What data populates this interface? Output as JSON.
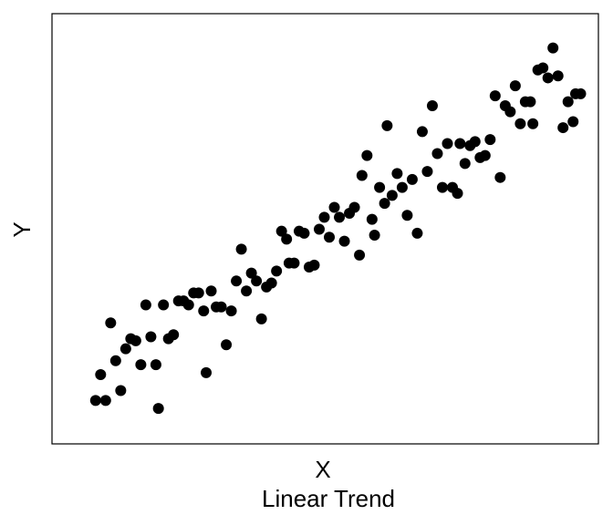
{
  "chart_data": {
    "type": "scatter",
    "xlabel": "X",
    "ylabel": "Y",
    "subtitle": "Linear Trend",
    "grid": false,
    "legend": "none",
    "point_color": "#000000",
    "xlim": [
      0,
      100
    ],
    "ylim": [
      0,
      100
    ],
    "points": [
      {
        "x": 4.5,
        "y": 7.0
      },
      {
        "x": 5.5,
        "y": 13.5
      },
      {
        "x": 6.5,
        "y": 7.0
      },
      {
        "x": 7.5,
        "y": 26.5
      },
      {
        "x": 8.5,
        "y": 17.0
      },
      {
        "x": 9.5,
        "y": 9.5
      },
      {
        "x": 10.5,
        "y": 20.0
      },
      {
        "x": 11.5,
        "y": 22.5
      },
      {
        "x": 12.5,
        "y": 22.0
      },
      {
        "x": 13.5,
        "y": 16.0
      },
      {
        "x": 14.5,
        "y": 31.0
      },
      {
        "x": 15.5,
        "y": 23.0
      },
      {
        "x": 16.5,
        "y": 16.0
      },
      {
        "x": 17.0,
        "y": 5.0
      },
      {
        "x": 18.0,
        "y": 31.0
      },
      {
        "x": 19.0,
        "y": 22.5
      },
      {
        "x": 20.0,
        "y": 23.5
      },
      {
        "x": 21.0,
        "y": 32.0
      },
      {
        "x": 22.0,
        "y": 32.0
      },
      {
        "x": 23.0,
        "y": 31.0
      },
      {
        "x": 24.0,
        "y": 34.0
      },
      {
        "x": 25.0,
        "y": 34.0
      },
      {
        "x": 26.0,
        "y": 29.5
      },
      {
        "x": 26.5,
        "y": 14.0
      },
      {
        "x": 27.5,
        "y": 34.5
      },
      {
        "x": 28.5,
        "y": 30.5
      },
      {
        "x": 29.5,
        "y": 30.5
      },
      {
        "x": 30.5,
        "y": 21.0
      },
      {
        "x": 31.5,
        "y": 29.5
      },
      {
        "x": 32.5,
        "y": 37.0
      },
      {
        "x": 33.5,
        "y": 45.0
      },
      {
        "x": 34.5,
        "y": 34.5
      },
      {
        "x": 35.5,
        "y": 39.0
      },
      {
        "x": 36.5,
        "y": 37.0
      },
      {
        "x": 37.5,
        "y": 27.5
      },
      {
        "x": 38.5,
        "y": 35.5
      },
      {
        "x": 39.5,
        "y": 36.5
      },
      {
        "x": 40.5,
        "y": 39.5
      },
      {
        "x": 41.5,
        "y": 49.5
      },
      {
        "x": 42.5,
        "y": 47.5
      },
      {
        "x": 43.0,
        "y": 41.5
      },
      {
        "x": 44.0,
        "y": 41.5
      },
      {
        "x": 45.0,
        "y": 49.5
      },
      {
        "x": 46.0,
        "y": 49.0
      },
      {
        "x": 47.0,
        "y": 40.5
      },
      {
        "x": 48.0,
        "y": 41.0
      },
      {
        "x": 49.0,
        "y": 50.0
      },
      {
        "x": 50.0,
        "y": 53.0
      },
      {
        "x": 51.0,
        "y": 48.0
      },
      {
        "x": 52.0,
        "y": 55.5
      },
      {
        "x": 53.0,
        "y": 53.0
      },
      {
        "x": 54.0,
        "y": 47.0
      },
      {
        "x": 55.0,
        "y": 54.0
      },
      {
        "x": 56.0,
        "y": 55.5
      },
      {
        "x": 57.0,
        "y": 43.5
      },
      {
        "x": 57.5,
        "y": 63.5
      },
      {
        "x": 58.5,
        "y": 68.5
      },
      {
        "x": 59.5,
        "y": 52.5
      },
      {
        "x": 60.0,
        "y": 48.5
      },
      {
        "x": 61.0,
        "y": 60.5
      },
      {
        "x": 62.0,
        "y": 56.5
      },
      {
        "x": 62.5,
        "y": 76.0
      },
      {
        "x": 63.5,
        "y": 58.5
      },
      {
        "x": 64.5,
        "y": 64.0
      },
      {
        "x": 65.5,
        "y": 60.5
      },
      {
        "x": 66.5,
        "y": 53.5
      },
      {
        "x": 67.5,
        "y": 62.5
      },
      {
        "x": 68.5,
        "y": 49.0
      },
      {
        "x": 69.5,
        "y": 74.5
      },
      {
        "x": 70.5,
        "y": 64.5
      },
      {
        "x": 71.5,
        "y": 81.0
      },
      {
        "x": 72.5,
        "y": 69.0
      },
      {
        "x": 73.5,
        "y": 60.5
      },
      {
        "x": 74.5,
        "y": 71.5
      },
      {
        "x": 75.5,
        "y": 60.5
      },
      {
        "x": 76.5,
        "y": 59.0
      },
      {
        "x": 77.0,
        "y": 71.5
      },
      {
        "x": 78.0,
        "y": 66.5
      },
      {
        "x": 79.0,
        "y": 71.0
      },
      {
        "x": 80.0,
        "y": 72.0
      },
      {
        "x": 81.0,
        "y": 68.0
      },
      {
        "x": 82.0,
        "y": 68.5
      },
      {
        "x": 83.0,
        "y": 72.5
      },
      {
        "x": 84.0,
        "y": 83.5
      },
      {
        "x": 85.0,
        "y": 63.0
      },
      {
        "x": 86.0,
        "y": 81.0
      },
      {
        "x": 87.0,
        "y": 79.5
      },
      {
        "x": 88.0,
        "y": 86.0
      },
      {
        "x": 89.0,
        "y": 76.5
      },
      {
        "x": 90.0,
        "y": 82.0
      },
      {
        "x": 91.0,
        "y": 82.0
      },
      {
        "x": 91.5,
        "y": 76.5
      },
      {
        "x": 92.5,
        "y": 90.0
      },
      {
        "x": 93.5,
        "y": 90.5
      },
      {
        "x": 94.5,
        "y": 88.0
      },
      {
        "x": 95.5,
        "y": 95.5
      },
      {
        "x": 96.5,
        "y": 88.5
      },
      {
        "x": 97.5,
        "y": 75.5
      },
      {
        "x": 98.5,
        "y": 82.0
      },
      {
        "x": 99.5,
        "y": 77.0
      },
      {
        "x": 100.0,
        "y": 84.0
      },
      {
        "x": 101.0,
        "y": 84.0
      }
    ]
  }
}
